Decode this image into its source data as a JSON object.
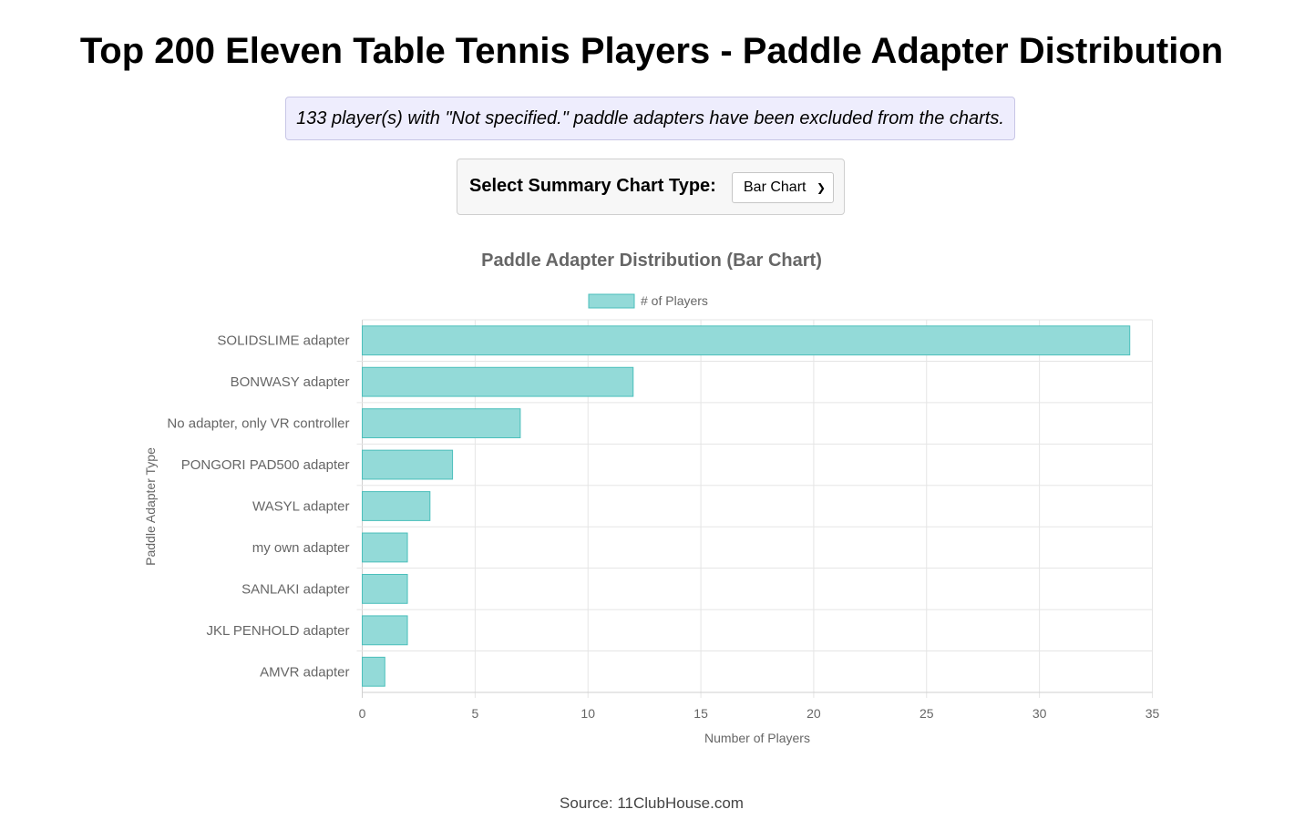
{
  "header": {
    "title": "Top 200 Eleven Table Tennis Players - Paddle Adapter Distribution"
  },
  "notice": {
    "text": "133 player(s) with \"Not specified.\" paddle adapters have been excluded from the charts."
  },
  "controls": {
    "label": "Select Summary Chart Type:",
    "selected": "Bar Chart"
  },
  "chart_data": {
    "type": "bar",
    "orientation": "horizontal",
    "title": "Paddle Adapter Distribution (Bar Chart)",
    "xlabel": "Number of Players",
    "ylabel": "Paddle Adapter Type",
    "categories": [
      "SOLIDSLIME adapter",
      "BONWASY adapter",
      "No adapter, only VR controller",
      "PONGORI PAD500 adapter",
      "WASYL adapter",
      "my own adapter",
      "SANLAKI adapter",
      "JKL PENHOLD adapter",
      "AMVR adapter"
    ],
    "series": [
      {
        "name": "# of Players",
        "values": [
          34,
          12,
          7,
          4,
          3,
          2,
          2,
          2,
          1
        ],
        "color": "#93dad8",
        "border_color": "#4bbfbb"
      }
    ],
    "xlim": [
      0,
      35
    ],
    "xticks": [
      0,
      5,
      10,
      15,
      20,
      25,
      30,
      35
    ],
    "grid": true,
    "legend_position": "top"
  },
  "footer": {
    "source": "Source: 11ClubHouse.com"
  }
}
